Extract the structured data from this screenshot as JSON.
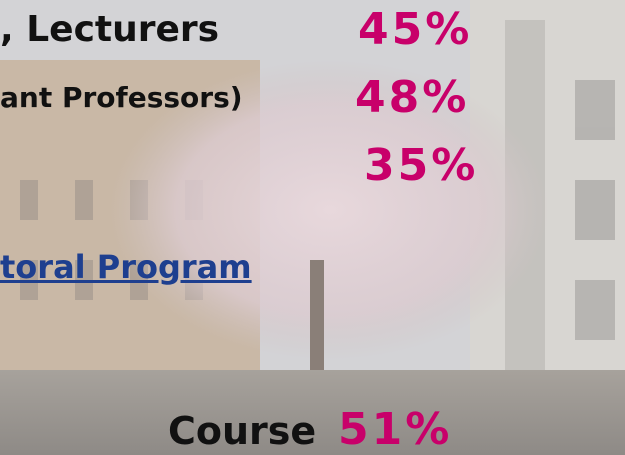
{
  "items": [
    {
      "text": ", Lecturers",
      "percent": "45%"
    },
    {
      "text": "ant Professors)",
      "percent": "48%"
    },
    {
      "percent": "35%"
    },
    {
      "link": "toral Program"
    },
    {
      "text": "Course",
      "percent": "51%"
    }
  ]
}
